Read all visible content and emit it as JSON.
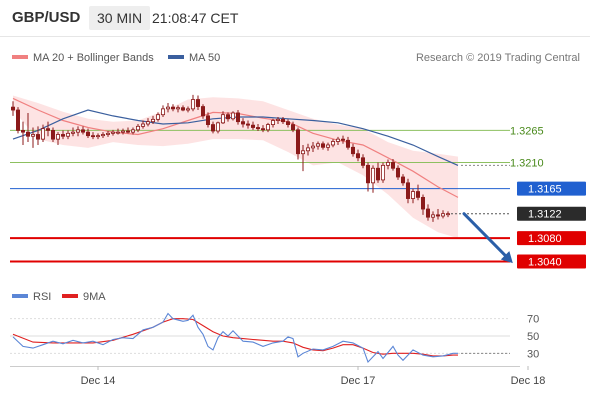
{
  "header": {
    "pair": "GBP/USD",
    "timeframe": "30 MIN",
    "time": "21:08:47 CET"
  },
  "legend": {
    "ma20": "MA 20 + Bollinger Bands",
    "ma50": "MA 50",
    "credit": "Research © 2019 Trading Central"
  },
  "rsi_legend": {
    "rsi": "RSI",
    "ma9": "9MA"
  },
  "colors": {
    "ma20": "#f08080",
    "band_fill": "#fde0e0",
    "ma50": "#3a5f9e",
    "candle": "#8b1a1a",
    "green_level": "#8dc060",
    "blue_level": "#2060d0",
    "red_level": "#e00000",
    "current": "#2b2b2b",
    "rsi": "#5b86d6",
    "rsi_ma": "#e02020",
    "arrow": "#2b5fa8"
  },
  "chart_data": [
    {
      "type": "candlestick",
      "x_labels": [
        "Dec 14",
        "Dec 17",
        "Dec 18"
      ],
      "x_label_at_bar": [
        17,
        69,
        103
      ],
      "ylim": [
        1.3015,
        1.3355
      ],
      "levels": [
        {
          "name": "resistance-2",
          "value": 1.3265,
          "label": "1.3265",
          "style": "green"
        },
        {
          "name": "resistance-1",
          "value": 1.321,
          "label": "1.3210",
          "style": "green"
        },
        {
          "name": "pivot",
          "value": 1.3165,
          "label": "1.3165",
          "style": "blue"
        },
        {
          "name": "current-price",
          "value": 1.3122,
          "label": "1.3122",
          "style": "current"
        },
        {
          "name": "support-1",
          "value": 1.308,
          "label": "1.3080",
          "style": "red"
        },
        {
          "name": "support-2",
          "value": 1.304,
          "label": "1.3040",
          "style": "red"
        }
      ],
      "candles": [
        [
          1.3305,
          1.3315,
          1.329,
          1.33
        ],
        [
          1.33,
          1.3305,
          1.326,
          1.3265
        ],
        [
          1.3265,
          1.328,
          1.324,
          1.3262
        ],
        [
          1.3262,
          1.3295,
          1.3245,
          1.3255
        ],
        [
          1.3255,
          1.327,
          1.3235,
          1.3258
        ],
        [
          1.3258,
          1.3272,
          1.324,
          1.325
        ],
        [
          1.325,
          1.3275,
          1.3245,
          1.3268
        ],
        [
          1.3268,
          1.328,
          1.3255,
          1.3265
        ],
        [
          1.3265,
          1.327,
          1.3245,
          1.325
        ],
        [
          1.325,
          1.3262,
          1.324,
          1.3258
        ],
        [
          1.3258,
          1.3265,
          1.325,
          1.3255
        ],
        [
          1.3255,
          1.3265,
          1.325,
          1.326
        ],
        [
          1.326,
          1.327,
          1.3255,
          1.3262
        ],
        [
          1.3262,
          1.3272,
          1.3255,
          1.3266
        ],
        [
          1.3266,
          1.3272,
          1.3258,
          1.3262
        ],
        [
          1.3262,
          1.3268,
          1.3252,
          1.3256
        ],
        [
          1.3256,
          1.3262,
          1.325,
          1.3255
        ],
        [
          1.3255,
          1.326,
          1.325,
          1.3256
        ],
        [
          1.3256,
          1.3262,
          1.3252,
          1.3258
        ],
        [
          1.3258,
          1.3264,
          1.3254,
          1.326
        ],
        [
          1.326,
          1.3266,
          1.3256,
          1.3262
        ],
        [
          1.3262,
          1.3268,
          1.3258,
          1.3262
        ],
        [
          1.3262,
          1.3268,
          1.3258,
          1.3264
        ],
        [
          1.3264,
          1.327,
          1.326,
          1.3262
        ],
        [
          1.3262,
          1.327,
          1.3258,
          1.3266
        ],
        [
          1.3266,
          1.3276,
          1.3262,
          1.3272
        ],
        [
          1.3272,
          1.3282,
          1.3268,
          1.3276
        ],
        [
          1.3276,
          1.3286,
          1.3272,
          1.328
        ],
        [
          1.328,
          1.329,
          1.3276,
          1.3284
        ],
        [
          1.3284,
          1.3296,
          1.328,
          1.3292
        ],
        [
          1.3292,
          1.3308,
          1.3288,
          1.3302
        ],
        [
          1.3302,
          1.3312,
          1.3296,
          1.3305
        ],
        [
          1.3305,
          1.331,
          1.3298,
          1.3302
        ],
        [
          1.3302,
          1.3308,
          1.3296,
          1.3304
        ],
        [
          1.3304,
          1.3308,
          1.3298,
          1.33
        ],
        [
          1.33,
          1.3306,
          1.3296,
          1.3302
        ],
        [
          1.3302,
          1.3326,
          1.3298,
          1.3318
        ],
        [
          1.3318,
          1.3325,
          1.33,
          1.3306
        ],
        [
          1.3306,
          1.331,
          1.3285,
          1.329
        ],
        [
          1.329,
          1.3296,
          1.327,
          1.3275
        ],
        [
          1.3275,
          1.328,
          1.326,
          1.3264
        ],
        [
          1.3264,
          1.328,
          1.326,
          1.3278
        ],
        [
          1.3278,
          1.3298,
          1.3276,
          1.3292
        ],
        [
          1.3292,
          1.3296,
          1.328,
          1.3285
        ],
        [
          1.3285,
          1.3298,
          1.3282,
          1.3295
        ],
        [
          1.3295,
          1.33,
          1.3275,
          1.328
        ],
        [
          1.328,
          1.3286,
          1.327,
          1.3276
        ],
        [
          1.3276,
          1.3282,
          1.3268,
          1.3274
        ],
        [
          1.3274,
          1.328,
          1.3266,
          1.327
        ],
        [
          1.327,
          1.3276,
          1.3264,
          1.3268
        ],
        [
          1.3268,
          1.3274,
          1.3262,
          1.3266
        ],
        [
          1.3266,
          1.3278,
          1.3262,
          1.3275
        ],
        [
          1.3275,
          1.3285,
          1.327,
          1.3282
        ],
        [
          1.3282,
          1.3288,
          1.3276,
          1.3284
        ],
        [
          1.3284,
          1.3288,
          1.3276,
          1.328
        ],
        [
          1.328,
          1.3284,
          1.327,
          1.3275
        ],
        [
          1.3275,
          1.328,
          1.3262,
          1.3266
        ],
        [
          1.3266,
          1.327,
          1.3215,
          1.3225
        ],
        [
          1.3225,
          1.324,
          1.3195,
          1.323
        ],
        [
          1.323,
          1.3242,
          1.3222,
          1.3235
        ],
        [
          1.3235,
          1.3245,
          1.3228,
          1.3238
        ],
        [
          1.3238,
          1.3246,
          1.3232,
          1.3242
        ],
        [
          1.3242,
          1.3246,
          1.3232,
          1.3236
        ],
        [
          1.3236,
          1.3244,
          1.323,
          1.324
        ],
        [
          1.324,
          1.325,
          1.3236,
          1.3246
        ],
        [
          1.3246,
          1.3254,
          1.324,
          1.325
        ],
        [
          1.325,
          1.3256,
          1.3242,
          1.3248
        ],
        [
          1.3248,
          1.3254,
          1.3232,
          1.3236
        ],
        [
          1.3236,
          1.3242,
          1.322,
          1.3225
        ],
        [
          1.3225,
          1.3232,
          1.3212,
          1.3218
        ],
        [
          1.3218,
          1.3224,
          1.32,
          1.3205
        ],
        [
          1.3205,
          1.321,
          1.316,
          1.3175
        ],
        [
          1.3175,
          1.3205,
          1.3158,
          1.32
        ],
        [
          1.32,
          1.321,
          1.3175,
          1.318
        ],
        [
          1.318,
          1.321,
          1.3175,
          1.3205
        ],
        [
          1.3205,
          1.3215,
          1.3198,
          1.321
        ],
        [
          1.321,
          1.3216,
          1.3196,
          1.32
        ],
        [
          1.32,
          1.3205,
          1.318,
          1.3185
        ],
        [
          1.3185,
          1.319,
          1.317,
          1.3175
        ],
        [
          1.3175,
          1.3182,
          1.314,
          1.3148
        ],
        [
          1.3148,
          1.3165,
          1.314,
          1.316
        ],
        [
          1.316,
          1.3172,
          1.3145,
          1.315
        ],
        [
          1.315,
          1.3155,
          1.312,
          1.313
        ],
        [
          1.313,
          1.3138,
          1.311,
          1.3116
        ],
        [
          1.3116,
          1.3126,
          1.3108,
          1.312
        ],
        [
          1.312,
          1.313,
          1.3112,
          1.3118
        ],
        [
          1.3118,
          1.3128,
          1.3114,
          1.3122
        ],
        [
          1.3122,
          1.3126,
          1.3116,
          1.3122
        ]
      ],
      "ma20": [
        [
          0,
          1.332
        ],
        [
          5,
          1.33
        ],
        [
          10,
          1.3282
        ],
        [
          15,
          1.327
        ],
        [
          20,
          1.3262
        ],
        [
          25,
          1.3258
        ],
        [
          30,
          1.3268
        ],
        [
          35,
          1.3282
        ],
        [
          40,
          1.3296
        ],
        [
          45,
          1.3294
        ],
        [
          50,
          1.3286
        ],
        [
          55,
          1.328
        ],
        [
          60,
          1.326
        ],
        [
          65,
          1.3248
        ],
        [
          70,
          1.324
        ],
        [
          75,
          1.3218
        ],
        [
          80,
          1.3195
        ],
        [
          85,
          1.3168
        ],
        [
          89,
          1.315
        ]
      ],
      "band_upper": [
        [
          0,
          1.3325
        ],
        [
          5,
          1.3312
        ],
        [
          10,
          1.3297
        ],
        [
          15,
          1.3285
        ],
        [
          20,
          1.328
        ],
        [
          25,
          1.3282
        ],
        [
          30,
          1.3298
        ],
        [
          35,
          1.3318
        ],
        [
          40,
          1.3322
        ],
        [
          45,
          1.332
        ],
        [
          50,
          1.3315
        ],
        [
          55,
          1.33
        ],
        [
          60,
          1.3285
        ],
        [
          65,
          1.3275
        ],
        [
          70,
          1.3268
        ],
        [
          75,
          1.3245
        ],
        [
          80,
          1.323
        ],
        [
          85,
          1.3225
        ],
        [
          89,
          1.322
        ]
      ],
      "band_lower": [
        [
          0,
          1.33
        ],
        [
          5,
          1.325
        ],
        [
          10,
          1.324
        ],
        [
          15,
          1.3235
        ],
        [
          20,
          1.3245
        ],
        [
          25,
          1.324
        ],
        [
          30,
          1.3238
        ],
        [
          35,
          1.3242
        ],
        [
          40,
          1.325
        ],
        [
          45,
          1.325
        ],
        [
          50,
          1.3248
        ],
        [
          55,
          1.3228
        ],
        [
          60,
          1.3205
        ],
        [
          65,
          1.321
        ],
        [
          70,
          1.3188
        ],
        [
          75,
          1.3155
        ],
        [
          80,
          1.3115
        ],
        [
          85,
          1.309
        ],
        [
          89,
          1.308
        ]
      ],
      "ma50": [
        [
          0,
          1.325
        ],
        [
          5,
          1.3265
        ],
        [
          10,
          1.3285
        ],
        [
          15,
          1.33
        ],
        [
          20,
          1.329
        ],
        [
          25,
          1.3282
        ],
        [
          30,
          1.3276
        ],
        [
          35,
          1.3278
        ],
        [
          40,
          1.3285
        ],
        [
          45,
          1.3288
        ],
        [
          50,
          1.3288
        ],
        [
          55,
          1.3285
        ],
        [
          60,
          1.3282
        ],
        [
          65,
          1.3278
        ],
        [
          70,
          1.3268
        ],
        [
          75,
          1.3255
        ],
        [
          80,
          1.324
        ],
        [
          85,
          1.322
        ],
        [
          89,
          1.3205
        ]
      ],
      "forecast_arrow": {
        "from_bar": 89,
        "from_value": 1.3122,
        "to_bar": 99,
        "to_value": 1.3042
      }
    },
    {
      "type": "line",
      "name": "RSI panel",
      "ylim": [
        20,
        80
      ],
      "y_ticks": [
        70,
        50,
        30
      ],
      "rsi": [
        [
          0,
          49
        ],
        [
          2,
          38
        ],
        [
          4,
          36
        ],
        [
          6,
          40
        ],
        [
          8,
          44
        ],
        [
          10,
          41
        ],
        [
          12,
          45
        ],
        [
          14,
          42
        ],
        [
          16,
          44
        ],
        [
          18,
          40
        ],
        [
          20,
          46
        ],
        [
          22,
          48
        ],
        [
          24,
          47
        ],
        [
          26,
          57
        ],
        [
          28,
          60
        ],
        [
          30,
          66
        ],
        [
          31,
          76
        ],
        [
          32,
          70
        ],
        [
          34,
          67
        ],
        [
          35,
          68
        ],
        [
          36,
          74
        ],
        [
          37,
          60
        ],
        [
          38,
          52
        ],
        [
          39,
          38
        ],
        [
          40,
          34
        ],
        [
          41,
          48
        ],
        [
          42,
          55
        ],
        [
          43,
          50
        ],
        [
          44,
          56
        ],
        [
          46,
          44
        ],
        [
          48,
          43
        ],
        [
          50,
          38
        ],
        [
          52,
          42
        ],
        [
          54,
          44
        ],
        [
          55,
          49
        ],
        [
          56,
          47
        ],
        [
          57,
          26
        ],
        [
          58,
          30
        ],
        [
          60,
          35
        ],
        [
          62,
          34
        ],
        [
          64,
          38
        ],
        [
          66,
          44
        ],
        [
          68,
          42
        ],
        [
          70,
          36
        ],
        [
          71,
          20
        ],
        [
          72,
          26
        ],
        [
          73,
          32
        ],
        [
          74,
          24
        ],
        [
          75,
          31
        ],
        [
          76,
          38
        ],
        [
          77,
          28
        ],
        [
          78,
          22
        ],
        [
          80,
          34
        ],
        [
          82,
          28
        ],
        [
          84,
          26
        ],
        [
          86,
          27
        ],
        [
          88,
          30
        ],
        [
          89,
          30
        ]
      ],
      "ma9": [
        [
          0,
          52
        ],
        [
          4,
          43
        ],
        [
          8,
          42
        ],
        [
          12,
          42
        ],
        [
          16,
          42
        ],
        [
          20,
          45
        ],
        [
          24,
          52
        ],
        [
          28,
          60
        ],
        [
          30,
          66
        ],
        [
          32,
          70
        ],
        [
          34,
          70
        ],
        [
          36,
          69
        ],
        [
          38,
          62
        ],
        [
          40,
          55
        ],
        [
          42,
          50
        ],
        [
          44,
          48
        ],
        [
          46,
          47
        ],
        [
          48,
          46
        ],
        [
          50,
          45
        ],
        [
          52,
          44
        ],
        [
          54,
          44
        ],
        [
          56,
          42
        ],
        [
          58,
          37
        ],
        [
          60,
          34
        ],
        [
          62,
          33
        ],
        [
          64,
          36
        ],
        [
          66,
          40
        ],
        [
          68,
          40
        ],
        [
          70,
          36
        ],
        [
          72,
          31
        ],
        [
          74,
          29
        ],
        [
          76,
          30
        ],
        [
          78,
          30
        ],
        [
          80,
          30
        ],
        [
          82,
          29
        ],
        [
          84,
          27
        ],
        [
          86,
          27
        ],
        [
          88,
          28
        ],
        [
          89,
          28
        ]
      ]
    }
  ]
}
